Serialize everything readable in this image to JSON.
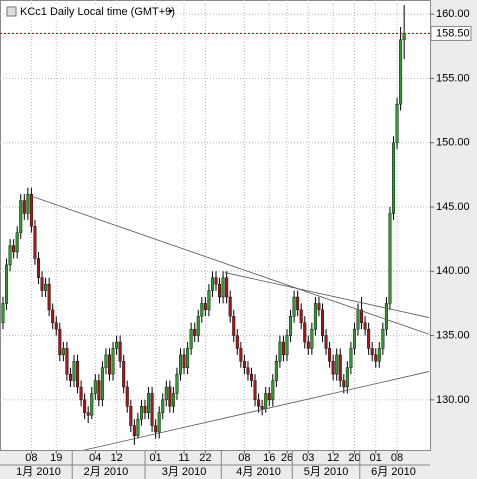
{
  "chart_data": {
    "type": "candlestick",
    "title": "KCc1 Daily Local time (GMT+9)",
    "categories": [
      null,
      null,
      null,
      null,
      null,
      null,
      null,
      null,
      "08",
      null,
      null,
      null,
      null,
      null,
      null,
      "19",
      null,
      null,
      null,
      null,
      null,
      null,
      null,
      null,
      null,
      null,
      "04",
      null,
      null,
      null,
      null,
      null,
      "12",
      null,
      null,
      null,
      null,
      null,
      null,
      null,
      null,
      null,
      null,
      "01",
      null,
      null,
      null,
      null,
      null,
      null,
      null,
      "11",
      null,
      null,
      null,
      null,
      null,
      "22",
      null,
      null,
      null,
      null,
      null,
      null,
      null,
      null,
      null,
      null,
      "08",
      null,
      null,
      null,
      null,
      null,
      null,
      "16",
      null,
      null,
      null,
      null,
      "26",
      null,
      null,
      null,
      null,
      null,
      "03",
      null,
      null,
      null,
      null,
      null,
      null,
      "12",
      null,
      null,
      null,
      null,
      null,
      "20",
      null,
      null,
      null,
      null,
      null,
      "01",
      null,
      null,
      null,
      null,
      null,
      "08",
      null,
      null
    ],
    "month_categories": [
      null,
      null,
      null,
      null,
      null,
      null,
      null,
      null,
      null,
      null,
      "1月 2010",
      null,
      null,
      null,
      null,
      null,
      null,
      null,
      null,
      null,
      null,
      null,
      null,
      null,
      null,
      null,
      null,
      null,
      null,
      "2月 2010",
      null,
      null,
      null,
      null,
      null,
      null,
      null,
      null,
      null,
      null,
      null,
      null,
      null,
      null,
      null,
      null,
      null,
      null,
      null,
      null,
      null,
      "3月 2010",
      null,
      null,
      null,
      null,
      null,
      null,
      null,
      null,
      null,
      null,
      null,
      null,
      null,
      null,
      null,
      null,
      null,
      null,
      null,
      null,
      "4月 2010",
      null,
      null,
      null,
      null,
      null,
      null,
      null,
      null,
      null,
      null,
      null,
      null,
      null,
      null,
      null,
      null,
      null,
      null,
      "5月 2010",
      null,
      null,
      null,
      null,
      null,
      null,
      null,
      null,
      null,
      null,
      null,
      null,
      null,
      null,
      null,
      null,
      null,
      null,
      "6月 2010",
      null,
      null
    ],
    "open": [
      136.0,
      137.5,
      140.5,
      142.0,
      141.5,
      143.0,
      145.5,
      144.5,
      146.0,
      143.5,
      141.0,
      139.5,
      138.5,
      139.0,
      137.0,
      136.0,
      135.5,
      133.5,
      134.0,
      132.0,
      131.5,
      133.0,
      131.0,
      130.0,
      129.0,
      128.8,
      130.5,
      131.5,
      130.0,
      132.5,
      133.5,
      132.0,
      134.0,
      134.5,
      133.0,
      131.0,
      129.5,
      128.0,
      127.2,
      128.5,
      129.5,
      129.0,
      130.5,
      128.0,
      127.5,
      129.0,
      130.0,
      131.0,
      129.5,
      130.5,
      132.0,
      133.5,
      132.5,
      134.0,
      135.5,
      135.0,
      136.5,
      137.5,
      137.0,
      138.5,
      139.5,
      139.0,
      138.0,
      139.5,
      138.0,
      136.5,
      135.0,
      134.0,
      133.0,
      132.5,
      132.0,
      131.5,
      130.0,
      129.5,
      129.3,
      130.5,
      130.0,
      131.5,
      133.0,
      134.5,
      133.5,
      135.0,
      136.5,
      138.0,
      137.0,
      136.0,
      134.5,
      134.0,
      135.5,
      137.5,
      137.0,
      135.0,
      134.0,
      133.0,
      132.0,
      133.5,
      131.5,
      131.0,
      132.5,
      134.0,
      135.5,
      137.0,
      136.0,
      135.5,
      134.0,
      133.5,
      133.0,
      134.0,
      135.5,
      137.5,
      144.5,
      150.0,
      153.0,
      158.0
    ],
    "high": [
      138.0,
      141.0,
      142.5,
      142.5,
      143.5,
      146.0,
      146.0,
      146.5,
      146.5,
      144.0,
      141.5,
      140.0,
      139.5,
      139.5,
      137.5,
      136.5,
      136.0,
      134.5,
      134.5,
      132.5,
      133.5,
      133.5,
      131.5,
      130.5,
      129.5,
      131.0,
      132.0,
      132.0,
      133.0,
      134.0,
      134.0,
      134.5,
      135.0,
      135.0,
      133.5,
      131.5,
      130.0,
      128.5,
      129.0,
      130.0,
      130.0,
      131.0,
      131.0,
      128.5,
      129.5,
      130.5,
      131.5,
      131.5,
      131.0,
      132.5,
      134.0,
      134.0,
      134.5,
      136.0,
      136.0,
      137.0,
      138.0,
      138.0,
      139.0,
      140.0,
      140.0,
      139.5,
      140.0,
      140.0,
      138.5,
      137.0,
      135.5,
      134.5,
      133.5,
      133.0,
      132.5,
      132.0,
      130.5,
      130.0,
      131.0,
      131.0,
      132.0,
      133.5,
      135.0,
      135.0,
      135.5,
      137.0,
      138.5,
      138.5,
      137.5,
      136.5,
      135.0,
      136.0,
      138.0,
      138.0,
      137.5,
      135.5,
      134.5,
      133.5,
      134.0,
      134.0,
      132.0,
      133.0,
      134.5,
      136.0,
      137.5,
      138.0,
      136.5,
      136.0,
      134.5,
      134.0,
      134.5,
      136.0,
      138.0,
      145.0,
      150.5,
      153.5,
      159.0,
      160.7
    ],
    "low": [
      135.5,
      137.0,
      140.0,
      141.0,
      141.0,
      142.5,
      144.0,
      144.0,
      143.0,
      140.5,
      139.0,
      138.0,
      138.0,
      136.5,
      135.5,
      135.0,
      133.0,
      133.0,
      131.5,
      131.0,
      131.0,
      130.5,
      129.5,
      128.5,
      128.2,
      128.5,
      130.0,
      129.5,
      129.5,
      132.0,
      131.5,
      131.5,
      133.5,
      132.5,
      130.5,
      129.0,
      127.5,
      126.5,
      127.0,
      128.0,
      128.5,
      128.5,
      127.5,
      127.0,
      127.0,
      128.5,
      129.5,
      129.0,
      129.0,
      130.0,
      131.5,
      132.0,
      132.0,
      133.5,
      134.5,
      134.5,
      136.0,
      136.5,
      136.5,
      138.0,
      138.5,
      137.5,
      137.5,
      137.5,
      136.0,
      134.5,
      133.5,
      132.5,
      132.0,
      131.5,
      131.0,
      129.5,
      129.0,
      128.8,
      129.0,
      129.5,
      129.5,
      131.0,
      132.5,
      133.0,
      133.0,
      134.5,
      136.0,
      136.5,
      135.5,
      134.0,
      133.5,
      133.5,
      135.0,
      136.5,
      134.5,
      133.5,
      132.5,
      131.5,
      131.5,
      131.0,
      130.5,
      130.5,
      132.0,
      133.5,
      135.0,
      135.5,
      135.0,
      133.5,
      133.0,
      132.5,
      132.5,
      133.5,
      135.0,
      137.0,
      144.0,
      149.5,
      152.5,
      156.5
    ],
    "close": [
      137.5,
      140.5,
      142.0,
      141.5,
      143.0,
      145.5,
      144.5,
      146.0,
      143.5,
      141.0,
      139.5,
      138.5,
      139.0,
      137.0,
      136.0,
      135.5,
      133.5,
      134.0,
      132.0,
      131.5,
      133.0,
      131.0,
      130.0,
      129.0,
      128.8,
      130.5,
      131.5,
      130.0,
      132.5,
      133.5,
      132.0,
      134.0,
      134.5,
      133.0,
      131.0,
      129.5,
      128.0,
      127.2,
      128.5,
      129.5,
      129.0,
      130.5,
      128.0,
      127.5,
      129.0,
      130.0,
      131.0,
      129.5,
      130.5,
      132.0,
      133.5,
      132.5,
      134.0,
      135.5,
      135.0,
      136.5,
      137.5,
      137.0,
      138.5,
      139.5,
      139.0,
      138.0,
      139.5,
      138.0,
      136.5,
      135.0,
      134.0,
      133.0,
      132.5,
      132.0,
      131.5,
      130.0,
      129.5,
      129.3,
      130.5,
      130.0,
      131.5,
      133.0,
      134.5,
      133.5,
      135.0,
      136.5,
      138.0,
      137.0,
      136.0,
      134.5,
      134.0,
      135.5,
      137.5,
      137.0,
      135.0,
      134.0,
      133.0,
      132.0,
      133.5,
      131.5,
      131.0,
      132.5,
      134.0,
      135.5,
      137.0,
      136.0,
      135.5,
      134.0,
      133.5,
      133.0,
      134.0,
      135.5,
      137.5,
      144.5,
      150.0,
      153.0,
      158.0,
      158.5
    ],
    "up_color": "#2e9a2e",
    "down_color": "#a01818",
    "trendlines": [
      {
        "x": [
          8.5,
          120
        ],
        "y": [
          145.8,
          135.1
        ]
      },
      {
        "x": [
          62.5,
          120
        ],
        "y": [
          139.9,
          136.4
        ]
      },
      {
        "x": [
          23,
          120
        ],
        "y": [
          126.1,
          132.2
        ]
      }
    ],
    "last_price": {
      "value": 158.5,
      "label": "158.50"
    },
    "ylim": [
      126.1,
      161.1
    ],
    "yticks": [
      {
        "value": 130,
        "label": "130.00"
      },
      {
        "value": 135,
        "label": "135.00"
      },
      {
        "value": 140,
        "label": "140.00"
      },
      {
        "value": 145,
        "label": "145.00"
      },
      {
        "value": 150,
        "label": "150.00"
      },
      {
        "value": 155,
        "label": "155.00"
      },
      {
        "value": 160,
        "label": "160.00"
      }
    ],
    "grid": true
  }
}
